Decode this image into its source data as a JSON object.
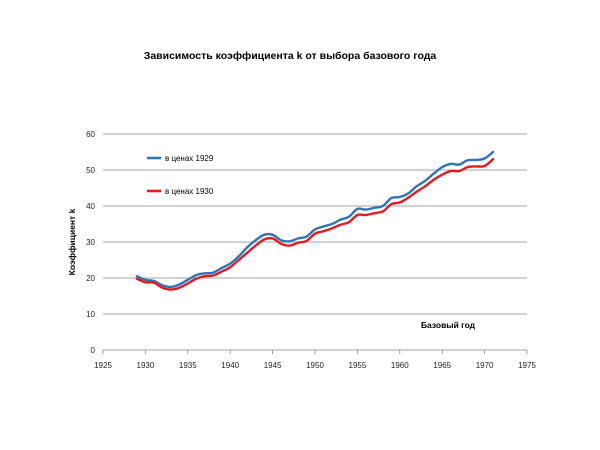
{
  "chart_data": {
    "type": "line",
    "title": "Зависимость коэффициента k от выбора базового года",
    "xlabel": "Базовый год",
    "ylabel": "Коэффициент k",
    "xlim": [
      1925,
      1975
    ],
    "ylim": [
      0,
      60
    ],
    "xticks": [
      "1925",
      "1930",
      "1935",
      "1940",
      "1945",
      "1950",
      "1955",
      "1960",
      "1965",
      "1970",
      "1975"
    ],
    "yticks": [
      "0",
      "10",
      "20",
      "30",
      "40",
      "50",
      "60"
    ],
    "grid": "horizontal",
    "legend_position": "top-left",
    "x": [
      1929,
      1930,
      1931,
      1932,
      1933,
      1934,
      1935,
      1936,
      1937,
      1938,
      1939,
      1940,
      1941,
      1942,
      1943,
      1944,
      1945,
      1946,
      1947,
      1948,
      1949,
      1950,
      1951,
      1952,
      1953,
      1954,
      1955,
      1956,
      1957,
      1958,
      1959,
      1960,
      1961,
      1962,
      1963,
      1964,
      1965,
      1966,
      1967,
      1968,
      1969,
      1970,
      1971
    ],
    "series": [
      {
        "name": "в ценах 1929",
        "color": "#2e75b6",
        "values": [
          20.5,
          19.5,
          19.2,
          18,
          17.5,
          18.2,
          19.5,
          20.8,
          21.3,
          21.5,
          22.8,
          24,
          26,
          28.5,
          30.5,
          32,
          32,
          30.5,
          30.2,
          31,
          31.5,
          33.5,
          34.3,
          35,
          36.2,
          37,
          39.2,
          39,
          39.5,
          40,
          42.2,
          42.5,
          43.5,
          45.5,
          47,
          49,
          50.8,
          51.7,
          51.5,
          52.7,
          52.8,
          53.2,
          55
        ]
      },
      {
        "name": "в ценах 1930",
        "color": "#e31b23",
        "values": [
          19.8,
          18.8,
          18.7,
          17.3,
          16.8,
          17.3,
          18.5,
          19.8,
          20.5,
          20.7,
          21.8,
          23,
          25,
          27,
          29,
          30.7,
          31,
          29.5,
          29,
          29.8,
          30.3,
          32.3,
          33,
          33.8,
          34.8,
          35.5,
          37.5,
          37.5,
          38,
          38.5,
          40.5,
          41,
          42.3,
          44,
          45.5,
          47.3,
          48.7,
          49.7,
          49.7,
          50.8,
          51,
          51.1,
          53
        ]
      }
    ]
  }
}
